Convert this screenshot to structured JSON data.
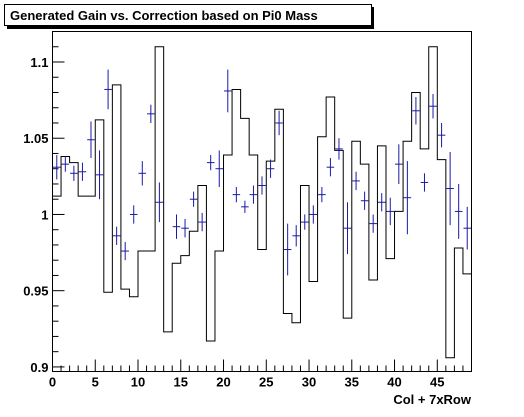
{
  "chart_data": {
    "type": "line",
    "title": "Generated Gain vs. Correction based on Pi0 Mass",
    "xlabel": "Col + 7xRow",
    "ylabel": "",
    "xlim": [
      0,
      49
    ],
    "ylim": [
      0.897,
      1.12
    ],
    "x_ticks": [
      0,
      5,
      10,
      15,
      20,
      25,
      30,
      35,
      40,
      45
    ],
    "x_tick_labels": [
      "0",
      "5",
      "10",
      "15",
      "20",
      "25",
      "30",
      "35",
      "40",
      "45"
    ],
    "y_ticks": [
      0.9,
      0.95,
      1.0,
      1.05,
      1.1
    ],
    "y_tick_labels": [
      "0.9",
      "0.95",
      "1",
      "1.05",
      "1.1"
    ],
    "grid": false,
    "series": [
      {
        "style": "step-histogram",
        "color": "#000000",
        "values": [
          1.012,
          1.038,
          1.034,
          1.012,
          1.012,
          1.062,
          0.949,
          1.085,
          0.951,
          0.946,
          0.976,
          0.976,
          1.11,
          0.923,
          0.968,
          0.973,
          0.989,
          1.019,
          0.917,
          0.976,
          1.039,
          1.082,
          1.063,
          1.039,
          0.977,
          1.035,
          1.069,
          0.935,
          0.929,
          1.019,
          0.956,
          1.051,
          1.077,
          1.042,
          0.932,
          1.048,
          1.033,
          0.957,
          1.045,
          0.971,
          1.002,
          1.048,
          1.08,
          1.043,
          1.11,
          1.036,
          0.906,
          0.978,
          0.961
        ]
      },
      {
        "style": "points-with-error",
        "color": "#1a1aa6",
        "values": [
          1.031,
          1.033,
          1.027,
          1.028,
          1.049,
          1.026,
          1.082,
          0.986,
          0.976,
          1.0,
          1.027,
          1.066,
          1.008,
          null,
          0.992,
          0.991,
          1.01,
          0.995,
          1.034,
          1.03,
          1.081,
          1.013,
          1.005,
          1.013,
          1.019,
          1.03,
          1.06,
          0.977,
          0.986,
          0.995,
          1.0,
          1.013,
          1.031,
          1.043,
          0.991,
          1.022,
          1.009,
          0.994,
          1.008,
          1.002,
          1.033,
          1.011,
          1.068,
          1.021,
          1.071,
          1.052,
          1.017,
          1.002,
          0.991
        ],
        "errors": [
          0.008,
          0.005,
          0.005,
          0.006,
          0.012,
          0.016,
          0.013,
          0.006,
          0.006,
          0.006,
          0.008,
          0.006,
          0.013,
          0,
          0.008,
          0.006,
          0.005,
          0.006,
          0.005,
          0.012,
          0.014,
          0.005,
          0.004,
          0.006,
          0.006,
          0.006,
          0.008,
          0.017,
          0.007,
          0.005,
          0.006,
          0.005,
          0.006,
          0.007,
          0.017,
          0.006,
          0.006,
          0.006,
          0.006,
          0.009,
          0.013,
          0.024,
          0.009,
          0.006,
          0.008,
          0.008,
          0.024,
          0.018,
          0.014
        ]
      }
    ]
  }
}
